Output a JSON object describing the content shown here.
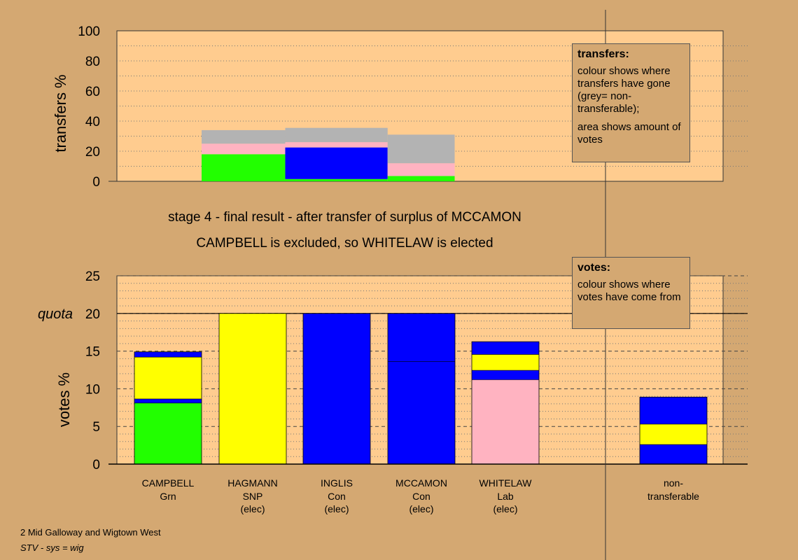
{
  "colors": {
    "background": "#d4a872",
    "plot_bg": "#ffcc8f",
    "green": "#22ff00",
    "yellow": "#ffff00",
    "blue": "#0000ff",
    "pink": "#ffb3c1",
    "grey": "#b3b3b3"
  },
  "headings": {
    "stage_line": "stage 4 - final result - after transfer of surplus of MCCAMON",
    "result_line": "CAMPBELL is excluded, so WHITELAW is elected"
  },
  "footer": {
    "ward": "2 Mid Galloway and Wigtown West",
    "system": "STV - sys = wig"
  },
  "legends": {
    "transfers": {
      "title": "transfers:",
      "text1": "colour shows where transfers have gone (grey= non-transferable);",
      "text2": "area shows amount of votes"
    },
    "votes": {
      "title": "votes:",
      "text1": "colour shows where votes have come from"
    }
  },
  "chart_data": [
    {
      "type": "bar",
      "name": "transfers",
      "ylabel": "transfers %",
      "ylim": [
        0,
        100
      ],
      "yticks": [
        0,
        20,
        40,
        60,
        80,
        100
      ],
      "grid": true,
      "bars": [
        {
          "x0": 0,
          "x1": 11.6,
          "segments": [
            {
              "color": "green",
              "y0": 0,
              "y1": 18
            },
            {
              "color": "blue",
              "y0": 18,
              "y1": 18
            },
            {
              "color": "pink",
              "y0": 18,
              "y1": 25
            },
            {
              "color": "grey",
              "y0": 25,
              "y1": 34
            }
          ]
        },
        {
          "x0": 11.6,
          "x1": 25.8,
          "segments": [
            {
              "color": "green",
              "y0": 0,
              "y1": 1.5
            },
            {
              "color": "blue",
              "y0": 1.5,
              "y1": 22.5
            },
            {
              "color": "pink",
              "y0": 22.5,
              "y1": 26
            },
            {
              "color": "grey",
              "y0": 26,
              "y1": 35.5
            }
          ]
        },
        {
          "x0": 25.8,
          "x1": 35.1,
          "segments": [
            {
              "color": "green",
              "y0": 0,
              "y1": 3.5
            },
            {
              "color": "pink",
              "y0": 3.5,
              "y1": 12
            },
            {
              "color": "grey",
              "y0": 12,
              "y1": 31
            }
          ]
        }
      ]
    },
    {
      "type": "bar",
      "name": "votes",
      "ylabel": "votes %",
      "ylim": [
        0,
        25
      ],
      "yticks": [
        0,
        5,
        10,
        15,
        20,
        25
      ],
      "quota": {
        "value": 20,
        "label": "quota"
      },
      "grid": true,
      "candidates": [
        {
          "label": "CAMPBELL",
          "party": "Grn",
          "status": "",
          "segments": [
            {
              "color": "green",
              "value": 8.1
            },
            {
              "color": "blue",
              "value": 0.55
            },
            {
              "color": "yellow",
              "value": 5.55
            },
            {
              "color": "blue",
              "value": 0.7
            }
          ]
        },
        {
          "label": "HAGMANN",
          "party": "SNP",
          "status": "(elec)",
          "segments": [
            {
              "color": "yellow",
              "value": 20
            }
          ]
        },
        {
          "label": "INGLIS",
          "party": "Con",
          "status": "(elec)",
          "segments": [
            {
              "color": "blue",
              "value": 20
            }
          ]
        },
        {
          "label": "MCCAMON",
          "party": "Con",
          "status": "(elec)",
          "segments": [
            {
              "color": "blue",
              "value": 13.6
            },
            {
              "color": "blue",
              "value": 6.4
            }
          ]
        },
        {
          "label": "WHITELAW",
          "party": "Lab",
          "status": "(elec)",
          "segments": [
            {
              "color": "pink",
              "value": 11.2
            },
            {
              "color": "blue",
              "value": 1.25
            },
            {
              "color": "yellow",
              "value": 2.1
            },
            {
              "color": "blue",
              "value": 1.7
            }
          ]
        }
      ],
      "nontransferable": {
        "label1": "non-",
        "label2": "transferable",
        "segments": [
          {
            "color": "blue",
            "value": 2.6
          },
          {
            "color": "yellow",
            "value": 2.7
          },
          {
            "color": "blue",
            "value": 3.6
          }
        ]
      }
    }
  ]
}
